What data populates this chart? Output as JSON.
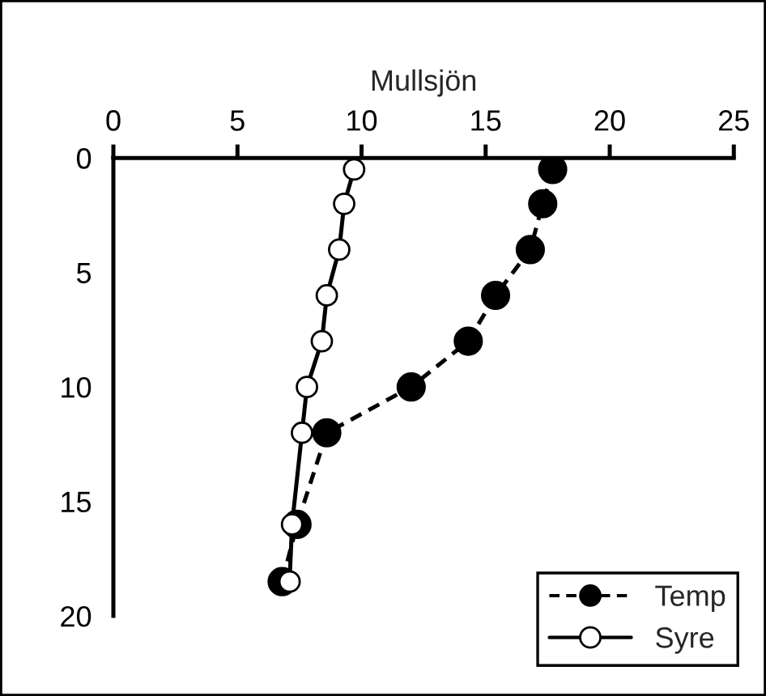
{
  "chart_data": {
    "type": "line",
    "title": "Mullsjön",
    "orientation": "horizontal",
    "x": [
      0.5,
      2,
      4,
      6,
      8,
      10,
      12,
      16,
      18.5
    ],
    "series": [
      {
        "name": "Temp",
        "color": "#000000",
        "line_style": "dashed",
        "marker": "circle",
        "values": [
          17.7,
          17.3,
          16.8,
          15.4,
          14.3,
          12.0,
          8.6,
          7.4,
          6.8
        ]
      },
      {
        "name": "Syre",
        "color": "#ffffff",
        "line_style": "solid",
        "marker": "circle",
        "values": [
          9.7,
          9.3,
          9.1,
          8.6,
          8.4,
          7.8,
          7.6,
          7.2,
          7.1
        ]
      }
    ],
    "xlim": [
      0,
      25
    ],
    "xticks": [
      0,
      5,
      10,
      15,
      20,
      25
    ],
    "ylim": [
      20,
      0
    ],
    "yticks": [
      0,
      5,
      10,
      15,
      20
    ],
    "legend": "bottom right",
    "grid": false
  }
}
